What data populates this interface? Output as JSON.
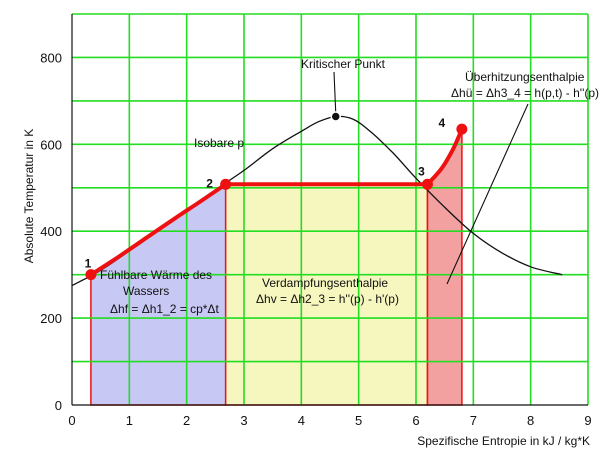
{
  "chart_data": {
    "type": "line",
    "xlabel": "Spezifische Entropie in  kJ /  kg*K",
    "ylabel": "Absolute Temperatur in K",
    "xlim": [
      0,
      9
    ],
    "ylim": [
      0,
      900
    ],
    "x_ticks": [
      0,
      1,
      2,
      3,
      4,
      5,
      6,
      7,
      8,
      9
    ],
    "y_ticks": [
      0,
      200,
      400,
      600,
      800
    ],
    "x_tick_labels": [
      "0",
      "1",
      "2",
      "3",
      "4",
      "5",
      "6",
      "7",
      "8",
      "9"
    ],
    "y_tick_labels": [
      "0",
      "200",
      "400",
      "600",
      "800"
    ],
    "grid": true,
    "colors": {
      "grid": "#22dd22",
      "process": "#ee1111",
      "dome": "#111111",
      "area_liquid": "#c8c8f4",
      "area_evaporation": "#f6f6bf",
      "area_superheat": "#f3a0a0"
    },
    "saturation_curve": {
      "x": [
        0.0,
        0.5,
        1.0,
        1.5,
        2.0,
        2.5,
        3.0,
        3.5,
        4.0,
        4.3,
        4.6,
        4.9,
        5.2,
        5.6,
        6.0,
        6.5,
        7.0,
        7.5,
        8.0,
        8.55
      ],
      "y": [
        275,
        310,
        355,
        405,
        450,
        495,
        540,
        590,
        630,
        652,
        664,
        658,
        630,
        580,
        522,
        455,
        395,
        350,
        318,
        300
      ]
    },
    "critical_point": {
      "x": 4.6,
      "y": 664
    },
    "process_path": {
      "x": [
        0.33,
        0.8,
        1.3,
        1.8,
        2.2,
        2.68,
        6.2,
        6.45,
        6.65,
        6.8
      ],
      "y": [
        300,
        340,
        385,
        430,
        465,
        508,
        508,
        545,
        590,
        635
      ]
    },
    "points": [
      {
        "label": "1",
        "x": 0.33,
        "y": 300
      },
      {
        "label": "2",
        "x": 2.68,
        "y": 508
      },
      {
        "label": "3",
        "x": 6.2,
        "y": 508
      },
      {
        "label": "4",
        "x": 6.8,
        "y": 635
      }
    ],
    "annotations": {
      "kritischer_punkt": "Kritischer Punkt",
      "isobare": "Isobare p",
      "ueberhitzung_title": "Überhitzungsenthalpie",
      "ueberhitzung_formula": "Δhü = Δh3_4 =  h(p,t) - h''(p)",
      "fuehlbar_line1": "Fühlbare Wärme des",
      "fuehlbar_line2": "Wassers",
      "fuehlbar_formula": "Δhf = Δh1_2 = cp*Δt",
      "verdampfung_title": "Verdampfungsenthalpie",
      "verdampfung_formula": "Δhv = Δh2_3 = h''(p) - h'(p)"
    }
  }
}
